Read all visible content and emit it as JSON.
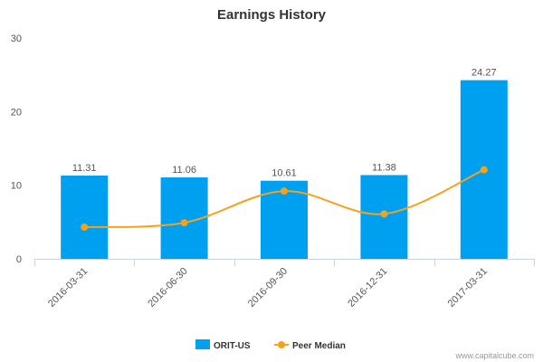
{
  "chart_data": {
    "type": "bar",
    "title": "Earnings History",
    "categories": [
      "2016-03-31",
      "2016-06-30",
      "2016-09-30",
      "2016-12-31",
      "2017-03-31"
    ],
    "ylim": [
      0,
      30
    ],
    "yticks": [
      0,
      10,
      20,
      30
    ],
    "grid": false,
    "legend_position": "bottom",
    "series": [
      {
        "name": "ORIT-US",
        "type": "bar",
        "color": "#00a0f0",
        "values": [
          11.31,
          11.06,
          10.61,
          11.38,
          24.27
        ],
        "labels": [
          "11.31",
          "11.06",
          "10.61",
          "11.38",
          "24.27"
        ]
      },
      {
        "name": "Peer Median",
        "type": "line",
        "color": "#f5a11c",
        "values": [
          4.3,
          4.9,
          9.2,
          6.1,
          12.1
        ]
      }
    ]
  },
  "credit": "www.capitalcube.com"
}
